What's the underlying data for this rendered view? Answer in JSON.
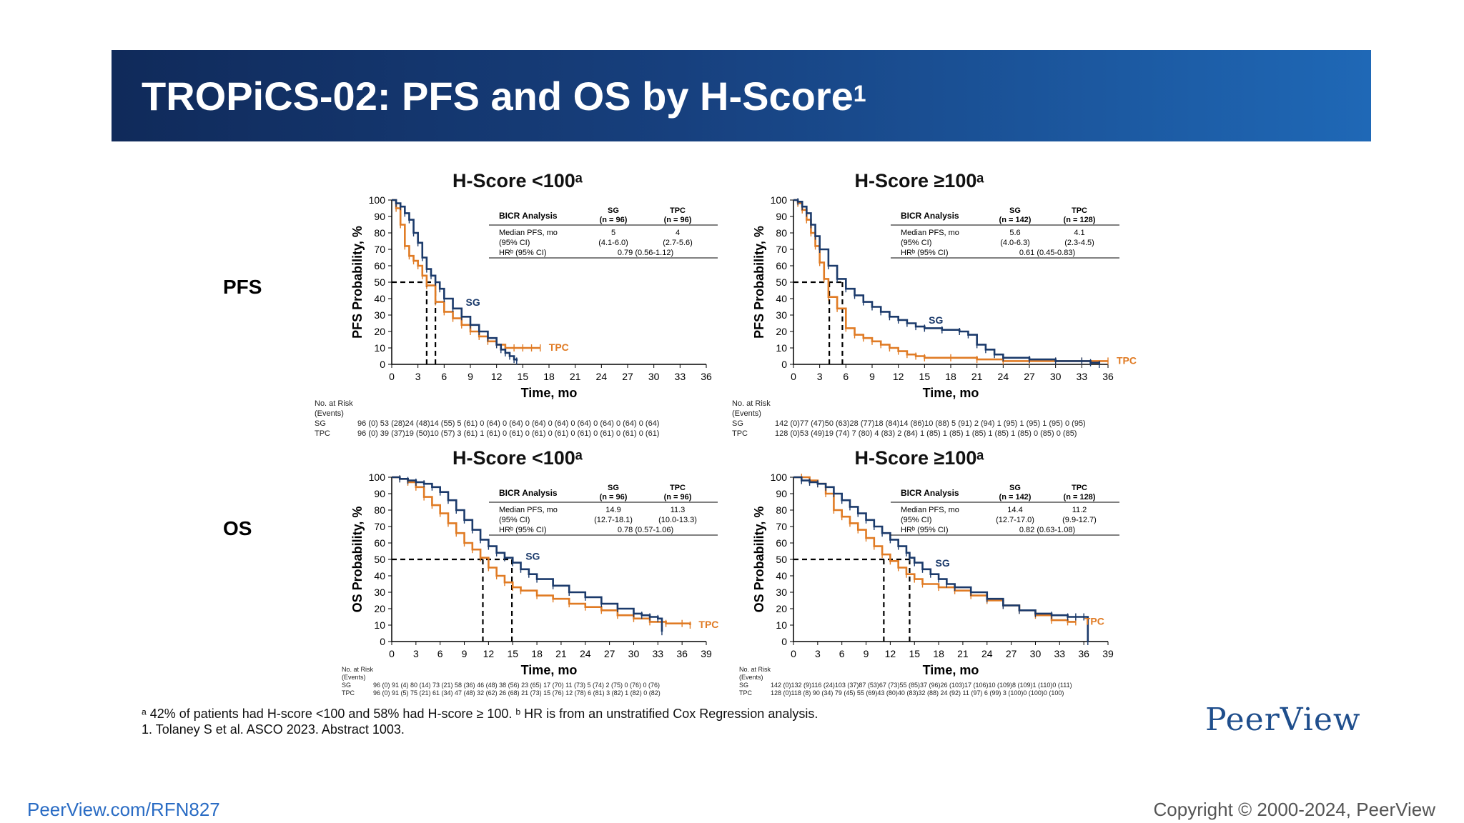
{
  "slide": {
    "title": "TROPiCS-02: PFS and OS by H-Score",
    "title_sup": "1",
    "row_labels": {
      "pfs": "PFS",
      "os": "OS"
    },
    "footnote_1": "ᵃ 42% of patients had H-score <100 and 58% had H-score ≥ 100. ᵇ HR is from an unstratified Cox Regression analysis.",
    "footnote_2": "1. Tolaney S et al. ASCO 2023. Abstract 1003.",
    "brand": "PeerView",
    "url": "PeerView.com/RFN827",
    "copyright": "Copyright © 2000-2024, PeerView"
  },
  "colors": {
    "sg": "#1b3a6b",
    "tpc": "#e07b24",
    "band_left": "#102a5a",
    "band_right": "#1f68b6"
  },
  "chart_data": [
    {
      "id": "pfs_low",
      "type": "line",
      "title": "H-Score <100ᵃ",
      "xlabel": "Time, mo",
      "ylabel": "PFS Probability, %",
      "xticks": [
        0,
        3,
        6,
        9,
        12,
        15,
        18,
        21,
        24,
        27,
        30,
        33,
        36
      ],
      "yticks": [
        0,
        10,
        20,
        30,
        40,
        50,
        60,
        70,
        80,
        90,
        100
      ],
      "xlim": [
        0,
        36
      ],
      "ylim": [
        0,
        100
      ],
      "series": [
        {
          "name": "SG",
          "x": [
            0,
            0.5,
            1,
            1.5,
            2,
            2.5,
            3,
            3.5,
            4,
            4.5,
            5,
            5.5,
            6,
            7,
            8,
            9,
            10,
            11,
            12,
            12.5,
            13,
            13.5,
            14,
            14.3
          ],
          "y": [
            100,
            98,
            96,
            92,
            88,
            80,
            74,
            65,
            58,
            54,
            50,
            46,
            40,
            34,
            29,
            24,
            20,
            16,
            12,
            9,
            7,
            5,
            3,
            2
          ]
        },
        {
          "name": "TPC",
          "x": [
            0,
            0.5,
            1,
            1.5,
            2,
            2.5,
            3,
            3.5,
            4,
            5,
            6,
            7,
            8,
            9,
            10,
            11,
            12,
            13,
            14,
            15,
            16,
            17
          ],
          "y": [
            100,
            95,
            85,
            72,
            66,
            63,
            60,
            54,
            48,
            38,
            32,
            28,
            24,
            20,
            17,
            14,
            12,
            10,
            10,
            10,
            10,
            10
          ]
        }
      ],
      "medians": {
        "SG": 5,
        "TPC": 4
      },
      "table": {
        "header": "BICR Analysis",
        "col_sg": "SG",
        "col_sg_n": "(n = 96)",
        "col_tpc": "TPC",
        "col_tpc_n": "(n = 96)",
        "r1": "Median PFS, mo",
        "r2": "(95% CI)",
        "r3": "HRᵇ (95% CI)",
        "sg_med": "5",
        "sg_ci": "(4.1-6.0)",
        "tpc_med": "4",
        "tpc_ci": "(2.7-5.6)",
        "hr": "0.79 (0.56-1.12)"
      },
      "series_labels": {
        "sg": "SG",
        "tpc": "TPC"
      },
      "risk": {
        "header1": "No. at Risk",
        "header2": "(Events)",
        "sg": "96 (0)  53 (28)24 (48)14 (55)  5 (61)   0 (64)   0 (64)   0 (64)   0 (64)   0 (64)   0 (64)   0 (64)   0 (64)",
        "tpc": "96 (0)  39 (37)19 (50)10 (57)  3 (61)   1 (61)   0 (61)   0 (61)   0 (61)   0 (61)   0 (61)   0 (61)   0 (61)"
      }
    },
    {
      "id": "pfs_high",
      "type": "line",
      "title": "H-Score ≥100ᵃ",
      "xlabel": "Time, mo",
      "ylabel": "PFS Probability, %",
      "xticks": [
        0,
        3,
        6,
        9,
        12,
        15,
        18,
        21,
        24,
        27,
        30,
        33,
        36
      ],
      "yticks": [
        0,
        10,
        20,
        30,
        40,
        50,
        60,
        70,
        80,
        90,
        100
      ],
      "xlim": [
        0,
        36
      ],
      "ylim": [
        0,
        100
      ],
      "series": [
        {
          "name": "SG",
          "x": [
            0,
            0.5,
            1,
            1.5,
            2,
            2.5,
            3,
            4,
            5,
            6,
            7,
            8,
            9,
            10,
            11,
            12,
            13,
            14,
            15,
            17,
            19,
            20,
            21,
            22,
            23,
            24,
            27,
            30,
            33,
            34,
            35
          ],
          "y": [
            100,
            99,
            96,
            92,
            85,
            78,
            70,
            60,
            52,
            46,
            42,
            38,
            35,
            32,
            29,
            27,
            25,
            23,
            22,
            21,
            20,
            18,
            12,
            9,
            6,
            4,
            3,
            2,
            2,
            1,
            0
          ]
        },
        {
          "name": "TPC",
          "x": [
            0,
            0.5,
            1,
            1.5,
            2,
            2.5,
            3,
            3.5,
            4,
            5,
            6,
            7,
            8,
            9,
            10,
            11,
            12,
            13,
            14,
            15,
            18,
            21,
            24,
            27,
            30,
            33,
            36
          ],
          "y": [
            100,
            98,
            94,
            88,
            80,
            72,
            62,
            52,
            41,
            34,
            22,
            18,
            16,
            14,
            12,
            10,
            8,
            6,
            5,
            4,
            4,
            3,
            2,
            2,
            2,
            2,
            2
          ]
        }
      ],
      "medians": {
        "SG": 5.6,
        "TPC": 4.1
      },
      "table": {
        "header": "BICR Analysis",
        "col_sg": "SG",
        "col_sg_n": "(n = 142)",
        "col_tpc": "TPC",
        "col_tpc_n": "(n = 128)",
        "r1": "Median PFS, mo",
        "r2": "(95% CI)",
        "r3": "HRᵇ (95% CI)",
        "sg_med": "5.6",
        "sg_ci": "(4.0-6.3)",
        "tpc_med": "4.1",
        "tpc_ci": "(2.3-4.5)",
        "hr": "0.61 (0.45-0.83)"
      },
      "series_labels": {
        "sg": "SG",
        "tpc": "TPC"
      },
      "risk": {
        "header1": "No. at Risk",
        "header2": "(Events)",
        "sg": "142 (0)77 (47)50 (63)28 (77)18 (84)14 (86)10 (88)  5 (91)  2 (94)  1 (95)  1 (95)  1 (95)  0 (95)",
        "tpc": "128 (0)53 (49)19 (74)  7 (80)   4 (83)   2 (84)   1 (85)   1 (85)   1 (85)   1 (85)   1 (85)   0 (85)   0 (85)"
      }
    },
    {
      "id": "os_low",
      "type": "line",
      "title": "H-Score <100ᵃ",
      "xlabel": "Time, mo",
      "ylabel": "OS Probability, %",
      "xticks": [
        0,
        3,
        6,
        9,
        12,
        15,
        18,
        21,
        24,
        27,
        30,
        33,
        36,
        39
      ],
      "yticks": [
        0,
        10,
        20,
        30,
        40,
        50,
        60,
        70,
        80,
        90,
        100
      ],
      "xlim": [
        0,
        39
      ],
      "ylim": [
        0,
        100
      ],
      "series": [
        {
          "name": "SG",
          "x": [
            0,
            1,
            2,
            3,
            4,
            5,
            6,
            7,
            8,
            9,
            10,
            11,
            12,
            13,
            14,
            15,
            16,
            17,
            18,
            20,
            22,
            24,
            26,
            28,
            30,
            31,
            32,
            33,
            33.5
          ],
          "y": [
            100,
            99,
            98,
            97,
            96,
            94,
            91,
            86,
            80,
            74,
            68,
            62,
            58,
            54,
            51,
            48,
            44,
            41,
            38,
            34,
            30,
            27,
            23,
            20,
            17,
            16,
            15,
            14,
            6
          ]
        },
        {
          "name": "TPC",
          "x": [
            0,
            1,
            2,
            3,
            4,
            5,
            6,
            7,
            8,
            9,
            10,
            11,
            12,
            13,
            14,
            15,
            16,
            18,
            20,
            22,
            24,
            26,
            28,
            30,
            32,
            34,
            36,
            37
          ],
          "y": [
            100,
            99,
            97,
            94,
            88,
            83,
            78,
            72,
            66,
            60,
            56,
            51,
            45,
            40,
            36,
            33,
            31,
            28,
            26,
            23,
            21,
            19,
            16,
            14,
            12,
            11,
            11,
            10
          ]
        }
      ],
      "medians": {
        "SG": 14.9,
        "TPC": 11.3
      },
      "table": {
        "header": "BICR Analysis",
        "col_sg": "SG",
        "col_sg_n": "(n = 96)",
        "col_tpc": "TPC",
        "col_tpc_n": "(n = 96)",
        "r1": "Median PFS, mo",
        "r2": "(95% CI)",
        "r3": "HRᵇ (95% CI)",
        "sg_med": "14.9",
        "sg_ci": "(12.7-18.1)",
        "tpc_med": "11.3",
        "tpc_ci": "(10.0-13.3)",
        "hr": "0.78 (0.57-1.06)"
      },
      "series_labels": {
        "sg": "SG",
        "tpc": "TPC"
      },
      "risk": {
        "header1": "No. at Risk",
        "header2": "(Events)",
        "sg": "96 (0) 91 (4) 80 (14) 73 (21) 58 (36) 46 (48) 38 (56) 23 (65) 17 (70) 11 (73)  5 (74)  2 (75)  0 (76)  0 (76)",
        "tpc": "96 (0) 91 (5) 75 (21) 61 (34) 47 (48) 32 (62) 26 (68) 21 (73) 15 (76) 12 (78)  6 (81)  3 (82)  1 (82)  0 (82)"
      }
    },
    {
      "id": "os_high",
      "type": "line",
      "title": "H-Score ≥100ᵃ",
      "xlabel": "Time, mo",
      "ylabel": "OS Probability, %",
      "xticks": [
        0,
        3,
        6,
        9,
        12,
        15,
        18,
        21,
        24,
        27,
        30,
        33,
        36,
        39
      ],
      "yticks": [
        0,
        10,
        20,
        30,
        40,
        50,
        60,
        70,
        80,
        90,
        100
      ],
      "xlim": [
        0,
        39
      ],
      "ylim": [
        0,
        100
      ],
      "series": [
        {
          "name": "SG",
          "x": [
            0,
            1,
            2,
            3,
            4,
            5,
            6,
            7,
            8,
            9,
            10,
            11,
            12,
            13,
            14,
            14.4,
            15,
            16,
            17,
            18,
            19,
            20,
            22,
            24,
            26,
            28,
            30,
            32,
            34,
            35,
            36,
            36.5
          ],
          "y": [
            100,
            98,
            97,
            96,
            94,
            90,
            86,
            82,
            78,
            74,
            70,
            66,
            62,
            58,
            54,
            51,
            48,
            44,
            41,
            38,
            35,
            33,
            30,
            26,
            22,
            19,
            17,
            16,
            15,
            15,
            15,
            0
          ]
        },
        {
          "name": "TPC",
          "x": [
            0,
            1,
            2,
            3,
            4,
            5,
            6,
            7,
            8,
            9,
            10,
            11,
            12,
            13,
            14,
            15,
            16,
            18,
            20,
            22,
            24,
            26,
            28,
            30,
            32,
            34,
            35
          ],
          "y": [
            100,
            100,
            98,
            96,
            90,
            80,
            76,
            72,
            68,
            63,
            58,
            53,
            49,
            45,
            41,
            38,
            35,
            33,
            31,
            28,
            25,
            22,
            19,
            16,
            13,
            12,
            12
          ]
        }
      ],
      "medians": {
        "SG": 14.4,
        "TPC": 11.2
      },
      "table": {
        "header": "BICR Analysis",
        "col_sg": "SG",
        "col_sg_n": "(n = 142)",
        "col_tpc": "TPC",
        "col_tpc_n": "(n = 128)",
        "r1": "Median PFS, mo",
        "r2": "(95% CI)",
        "r3": "HRᵇ (95% CI)",
        "sg_med": "14.4",
        "sg_ci": "(12.7-17.0)",
        "tpc_med": "11.2",
        "tpc_ci": "(9.9-12.7)",
        "hr": "0.82 (0.63-1.08)"
      },
      "series_labels": {
        "sg": "SG",
        "tpc": "TPC"
      },
      "risk": {
        "header1": "No. at Risk",
        "header2": "(Events)",
        "sg": "142 (0)132 (9)116 (24)103 (37)87 (53)67 (73)55 (85)37 (96)26 (103)17 (106)10 (109)8 (109)1 (110)0 (111)",
        "tpc": "128 (0)118 (8) 90 (34)  79 (45) 55 (69)43 (80)40 (83)32 (88) 24 (92)  11 (97)   6 (99)  3 (100)0 (100)0 (100)"
      }
    }
  ]
}
